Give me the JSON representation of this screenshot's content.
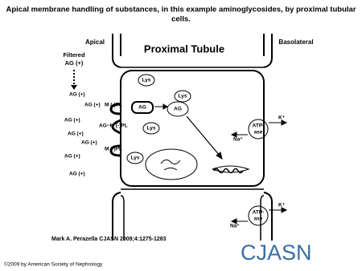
{
  "header": {
    "title": [
      "Apical membrane handling of substances, in this example aminoglycosides, by proximal tubular",
      "cells."
    ]
  },
  "diagram": {
    "apical": "Apical",
    "heading": "Proximal Tubule",
    "basolateral": "Basolateral",
    "filtered": [
      "Filtered",
      "AG (+)"
    ],
    "lumen_labels": [
      "AG (+)",
      "AG (+)",
      "AG (+)",
      "AG (+)",
      "AG (+)",
      "AG (+)",
      "AG (+)"
    ],
    "membrane_labels": [
      "M (-)PL",
      "AG~M (-)PL",
      "M (-)PL"
    ],
    "lys": [
      "Lys",
      "Lys",
      "Lys",
      "Lys"
    ],
    "cell_ag": [
      "AG",
      "AG"
    ],
    "pumps": [
      {
        "k": "K⁺",
        "na": "Na⁺",
        "atp": [
          "ATP-",
          "ase"
        ]
      },
      {
        "k": "K⁺",
        "na": "Na⁺",
        "atp": [
          "ATP-",
          "ase"
        ]
      }
    ]
  },
  "citation": "Mark A. Perazella CJASN 2009;4:1275-1283",
  "logo": "CJASN",
  "copyright": "©2009 by American Society of Nephrology"
}
